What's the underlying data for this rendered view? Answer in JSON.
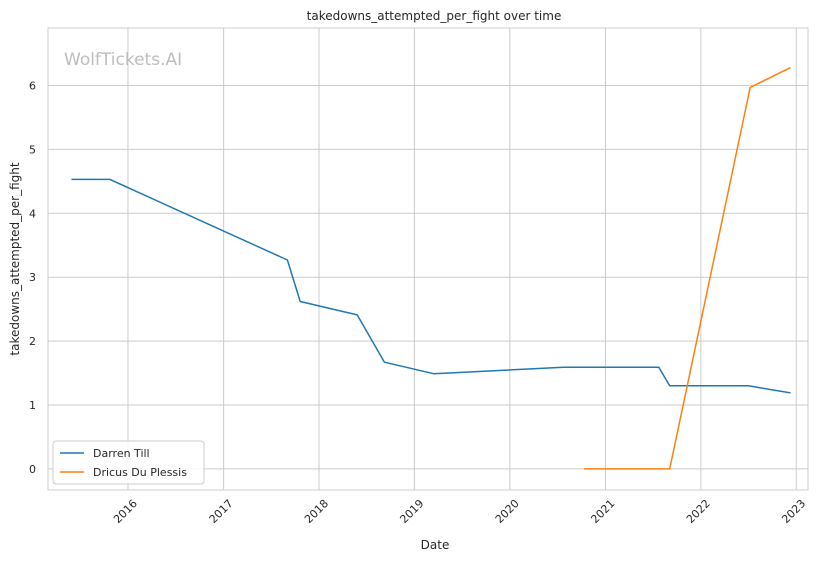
{
  "watermark": "WolfTickets.AI",
  "chart_data": {
    "type": "line",
    "title": "takedowns_attempted_per_fight over time",
    "xlabel": "Date",
    "ylabel": "takedowns_attempted_per_fight",
    "xlim": [
      "2015-03-01",
      "2023-02-15"
    ],
    "ylim": [
      -0.33,
      6.9
    ],
    "x_ticks": [
      "2016",
      "2017",
      "2018",
      "2019",
      "2020",
      "2021",
      "2022",
      "2023"
    ],
    "y_ticks": [
      0,
      1,
      2,
      3,
      4,
      5,
      6
    ],
    "grid": true,
    "legend_position": "lower-left",
    "series": [
      {
        "name": "Darren Till",
        "color": "#1f77b4",
        "points": [
          {
            "x": "2015-05-30",
            "y": 4.53
          },
          {
            "x": "2015-10-24",
            "y": 4.53
          },
          {
            "x": "2017-09-02",
            "y": 3.27
          },
          {
            "x": "2017-10-21",
            "y": 2.62
          },
          {
            "x": "2018-05-27",
            "y": 2.41
          },
          {
            "x": "2018-09-08",
            "y": 1.67
          },
          {
            "x": "2019-03-16",
            "y": 1.49
          },
          {
            "x": "2020-07-25",
            "y": 1.59
          },
          {
            "x": "2021-07-24",
            "y": 1.59
          },
          {
            "x": "2021-09-04",
            "y": 1.3
          },
          {
            "x": "2022-07-02",
            "y": 1.3
          },
          {
            "x": "2022-12-10",
            "y": 1.19
          }
        ]
      },
      {
        "name": "Dricus Du Plessis",
        "color": "#ff7f0e",
        "points": [
          {
            "x": "2020-10-11",
            "y": 0.0
          },
          {
            "x": "2021-09-04",
            "y": 0.0
          },
          {
            "x": "2022-07-09",
            "y": 5.97
          },
          {
            "x": "2022-12-10",
            "y": 6.28
          }
        ]
      }
    ]
  }
}
